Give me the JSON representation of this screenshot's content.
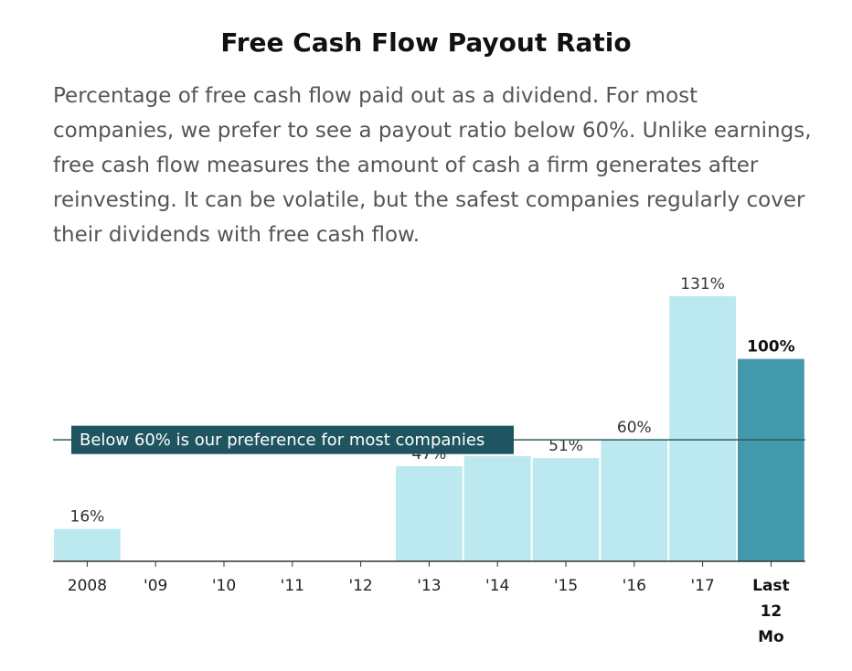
{
  "header": {
    "title": "Free Cash Flow Payout Ratio",
    "description": "Percentage of free cash flow paid out as a dividend. For most companies, we prefer to see a payout ratio below 60%. Unlike earnings, free cash flow measures the amount of cash a firm generates after reinvesting. It can be volatile, but the safest companies regularly cover their dividends with free cash flow."
  },
  "colors": {
    "bar": "#bce9ef",
    "bar_highlight": "#4299ab",
    "reference_line": "#2f5b63",
    "annotation_bg": "#1f5560"
  },
  "chart_data": {
    "type": "bar",
    "title": "Free Cash Flow Payout Ratio",
    "categories": [
      "2008",
      "'09",
      "'10",
      "'11",
      "'12",
      "'13",
      "'14",
      "'15",
      "'16",
      "'17",
      "Last 12 Mo"
    ],
    "values": [
      16,
      null,
      null,
      null,
      null,
      47,
      null,
      51,
      60,
      131,
      100
    ],
    "value_labels": [
      "16%",
      "",
      "",
      "",
      "",
      "47%",
      "",
      "51%",
      "60%",
      "131%",
      "100%"
    ],
    "estimated_values": {
      "'14": 52
    },
    "highlight_category": "Last 12 Mo",
    "reference_line": {
      "value": 60,
      "label": "Below 60% is our preference for most companies"
    },
    "ylim": [
      0,
      131
    ],
    "grid": false,
    "legend": "none"
  }
}
